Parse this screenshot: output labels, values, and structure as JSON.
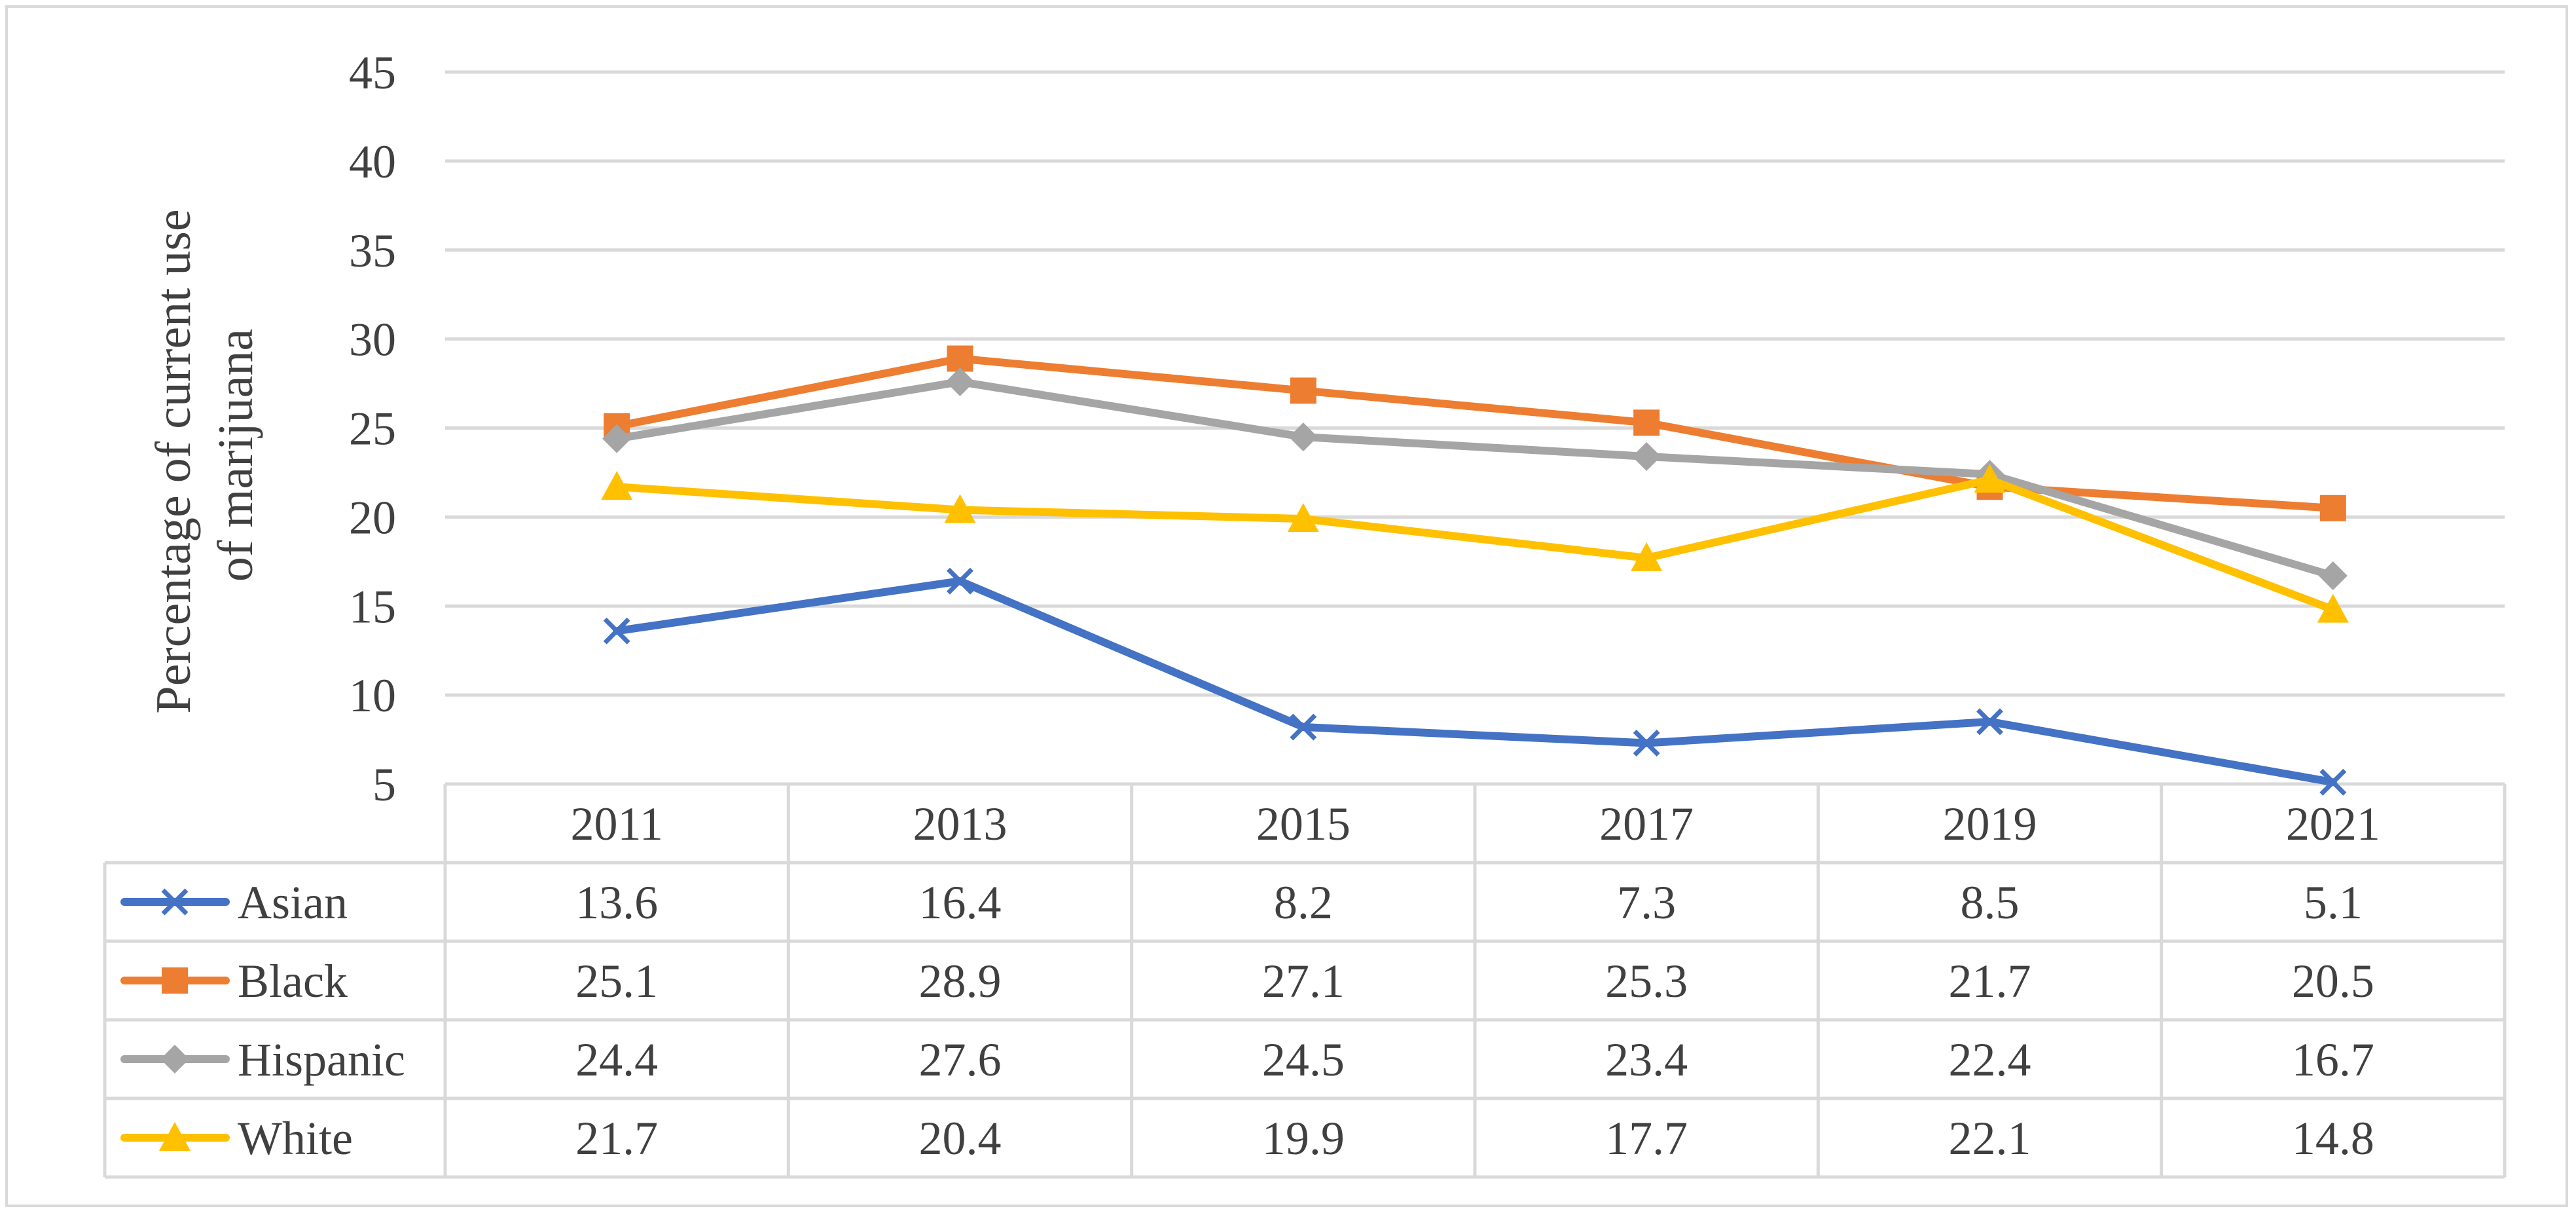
{
  "chart_data": {
    "type": "line",
    "ylabel_lines": [
      "Percentage of current use",
      "of  marijuana"
    ],
    "ylim": [
      5,
      45
    ],
    "yticks": [
      5,
      10,
      15,
      20,
      25,
      30,
      35,
      40,
      45
    ],
    "categories": [
      "2011",
      "2013",
      "2015",
      "2017",
      "2019",
      "2021"
    ],
    "grid": true,
    "legend_placement": "data-table-left",
    "series": [
      {
        "name": "Asian",
        "color": "#4472c4",
        "marker": "x",
        "values": [
          13.6,
          16.4,
          8.2,
          7.3,
          8.5,
          5.1
        ]
      },
      {
        "name": "Black",
        "color": "#ed7d31",
        "marker": "square",
        "values": [
          25.1,
          28.9,
          27.1,
          25.3,
          21.7,
          20.5
        ]
      },
      {
        "name": "Hispanic",
        "color": "#a5a5a5",
        "marker": "diamond",
        "values": [
          24.4,
          27.6,
          24.5,
          23.4,
          22.4,
          16.7
        ]
      },
      {
        "name": "White",
        "color": "#ffc000",
        "marker": "triangle",
        "values": [
          21.7,
          20.4,
          19.9,
          17.7,
          22.1,
          14.8
        ]
      }
    ]
  }
}
